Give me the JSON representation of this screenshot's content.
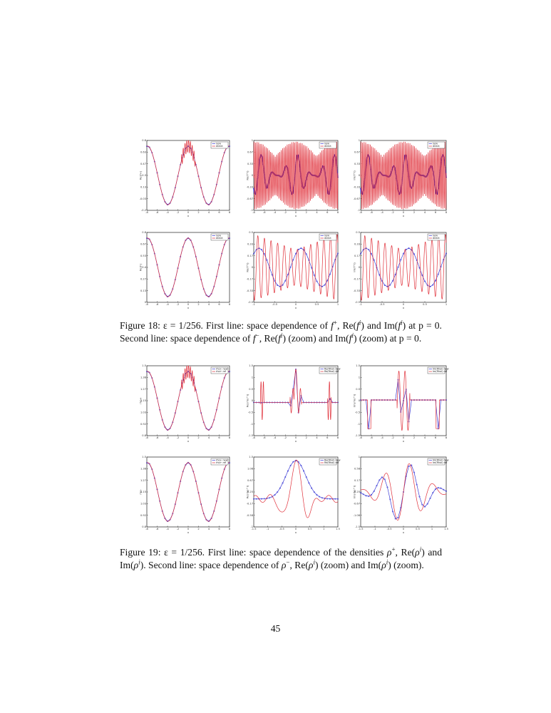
{
  "figure18": {
    "caption": {
      "label": "Figure 18:",
      "eps": "ε = 1/256.",
      "text1": " First line: space dependence of ",
      "f": "f",
      "plus": "+",
      "sep1": ", Re(",
      "fi": "f",
      "i": "i",
      "text2": ") and Im(",
      "text3": ") at",
      "line2a": "p = 0. Second line: space dependence of ",
      "minus": "−",
      "line2b": ", Re(",
      "line2c": ") (zoom) and Im(",
      "line2d": ") (zoom)",
      "line3": "at p = 0."
    }
  },
  "figure19": {
    "caption": {
      "label": "Figure 19:",
      "eps": "ε = 1/256.",
      "text1": " First line: space dependence of the densities ",
      "rho": "ρ",
      "plus": "+",
      "sep1": ", Re(",
      "i": "i",
      "line2a": "and Im(",
      "line2b": "). Second line: space dependence of ",
      "minus": "−",
      "line2c": ", Re(",
      "line2d": ") (zoom) and Im(",
      "line2e": ")",
      "line3": "(zoom)."
    }
  },
  "page_number": "45",
  "legend_new": "new",
  "legend_direct": "direct",
  "legend_rho_new": "rho+ new",
  "legend_rho_ref": "rho+ ref",
  "legend_re_new": "Re(Rhoi) new",
  "legend_re_ref": "Re(Rhoi) ref",
  "legend_im_new": "Im(Rhoi) new",
  "legend_im_ref": "Im(Rhoi) ref",
  "xlabel": "x",
  "colors": {
    "reference": "#e0303a",
    "new": "#3b3bd6"
  },
  "chart_data": [
    {
      "id": "fig18-r1-c1",
      "type": "line",
      "ylabel": "Re(f+)",
      "ylim": [
        -0.2,
        0.8
      ],
      "xlim": [
        -8,
        8
      ],
      "xticks": [
        "-8",
        "-6",
        "-4",
        "-2",
        "0",
        "2",
        "4",
        "6",
        "8"
      ],
      "series": [
        {
          "name": "new",
          "kind": "cos2",
          "markers": true
        },
        {
          "name": "direct",
          "kind": "cos2-noisy"
        }
      ]
    },
    {
      "id": "fig18-r1-c2",
      "type": "line",
      "ylabel": "Re(f^i)",
      "ylim": [
        -1,
        1
      ],
      "xlim": [
        -8,
        8
      ],
      "xticks": [
        "-8",
        "-6",
        "-4",
        "-2",
        "0",
        "2",
        "4",
        "6",
        "8"
      ],
      "series": [
        {
          "name": "new",
          "kind": "coarse-osc",
          "markers": true
        },
        {
          "name": "direct",
          "kind": "dense-osc"
        }
      ]
    },
    {
      "id": "fig18-r1-c3",
      "type": "line",
      "ylabel": "Im(f^i)",
      "ylim": [
        -1,
        1
      ],
      "xlim": [
        -8,
        8
      ],
      "xticks": [
        "-8",
        "-6",
        "-4",
        "-2",
        "0",
        "2",
        "4",
        "6",
        "8"
      ],
      "series": [
        {
          "name": "new",
          "kind": "coarse-osc",
          "markers": true
        },
        {
          "name": "direct",
          "kind": "dense-osc"
        }
      ]
    },
    {
      "id": "fig18-r2-c1",
      "type": "line",
      "ylabel": "Re(f-)",
      "ylim": [
        0,
        0.8
      ],
      "xlim": [
        -8,
        8
      ],
      "xticks": [
        "-8",
        "-6",
        "-4",
        "-2",
        "0",
        "2",
        "4",
        "6",
        "8"
      ],
      "series": [
        {
          "name": "new",
          "kind": "cos2",
          "markers": true
        },
        {
          "name": "direct",
          "kind": "cos2"
        }
      ]
    },
    {
      "id": "fig18-r2-c2",
      "type": "line",
      "ylabel": "Re(f^i)",
      "ylim": [
        -0.5,
        0.5
      ],
      "xlim": [
        -1,
        1
      ],
      "xticks": [
        "-1",
        "-0.5",
        "0",
        "0.5",
        "1"
      ],
      "series": [
        {
          "name": "new",
          "kind": "zoom-coarse",
          "markers": true
        },
        {
          "name": "direct",
          "kind": "zoom-osc"
        }
      ]
    },
    {
      "id": "fig18-r2-c3",
      "type": "line",
      "ylabel": "Im(f^i)",
      "ylim": [
        -0.5,
        0.5
      ],
      "xlim": [
        -1,
        1
      ],
      "xticks": [
        "-1",
        "-0.5",
        "0",
        "0.5",
        "1"
      ],
      "series": [
        {
          "name": "new",
          "kind": "zoom-coarse",
          "markers": true
        },
        {
          "name": "direct",
          "kind": "zoom-osc"
        }
      ]
    },
    {
      "id": "fig19-r1-c1",
      "type": "line",
      "ylabel": "rho+",
      "ylim": [
        0.8,
        1.5
      ],
      "xlim": [
        -8,
        8
      ],
      "xticks": [
        "-8",
        "-6",
        "-4",
        "-2",
        "0",
        "2",
        "4",
        "6",
        "8"
      ],
      "series": [
        {
          "name": "rho+ new",
          "kind": "cos2",
          "markers": true
        },
        {
          "name": "rho+ ref",
          "kind": "cos2-noisy"
        }
      ]
    },
    {
      "id": "fig19-r1-c2",
      "type": "line",
      "ylabel": "Re(rho^i)",
      "ylim": [
        -1.5,
        1.5
      ],
      "xlim": [
        -8,
        8
      ],
      "xticks": [
        "-8",
        "-6",
        "-4",
        "-2",
        "0",
        "2",
        "4",
        "6",
        "8"
      ],
      "series": [
        {
          "name": "Re(Rhoi) new",
          "kind": "spike-flat",
          "markers": true
        },
        {
          "name": "Re(Rhoi) ref",
          "kind": "spike-flat"
        }
      ]
    },
    {
      "id": "fig19-r1-c3",
      "type": "line",
      "ylabel": "Im(rho^i)",
      "ylim": [
        -1.5,
        1.5
      ],
      "xlim": [
        -8,
        8
      ],
      "xticks": [
        "-8",
        "-6",
        "-4",
        "-2",
        "0",
        "2",
        "4",
        "6",
        "8"
      ],
      "series": [
        {
          "name": "Im(Rhoi) new",
          "kind": "spike-flat-im",
          "markers": true
        },
        {
          "name": "Im(Rhoi) ref",
          "kind": "spike-flat-im"
        }
      ]
    },
    {
      "id": "fig19-r2-c1",
      "type": "line",
      "ylabel": "rho-",
      "ylim": [
        0.8,
        1.5
      ],
      "xlim": [
        -8,
        8
      ],
      "xticks": [
        "-8",
        "-6",
        "-4",
        "-2",
        "0",
        "2",
        "4",
        "6",
        "8"
      ],
      "series": [
        {
          "name": "rho+ new",
          "kind": "cos2",
          "markers": true
        },
        {
          "name": "rho+ ref",
          "kind": "cos2"
        }
      ]
    },
    {
      "id": "fig19-r2-c2",
      "type": "line",
      "ylabel": "Re(rho^i)",
      "ylim": [
        -1,
        1.5
      ],
      "xlim": [
        -1.5,
        1.5
      ],
      "xticks": [
        "-1.5",
        "-1",
        "-0.5",
        "0",
        "0.5",
        "1",
        "1.5"
      ],
      "series": [
        {
          "name": "Re(Rhoi) new",
          "kind": "zoom-peak",
          "markers": true
        },
        {
          "name": "Re(Rhoi) ref",
          "kind": "zoom-peak-osc"
        }
      ]
    },
    {
      "id": "fig19-r2-c3",
      "type": "line",
      "ylabel": "Im(rho^i)",
      "ylim": [
        -1.5,
        1
      ],
      "xlim": [
        -1.5,
        1.5
      ],
      "xticks": [
        "-1.5",
        "-1",
        "-0.5",
        "0",
        "0.5",
        "1",
        "1.5"
      ],
      "series": [
        {
          "name": "Im(Rhoi) new",
          "kind": "zoom-im",
          "markers": true
        },
        {
          "name": "Im(Rhoi) ref",
          "kind": "zoom-im-osc"
        }
      ]
    }
  ]
}
